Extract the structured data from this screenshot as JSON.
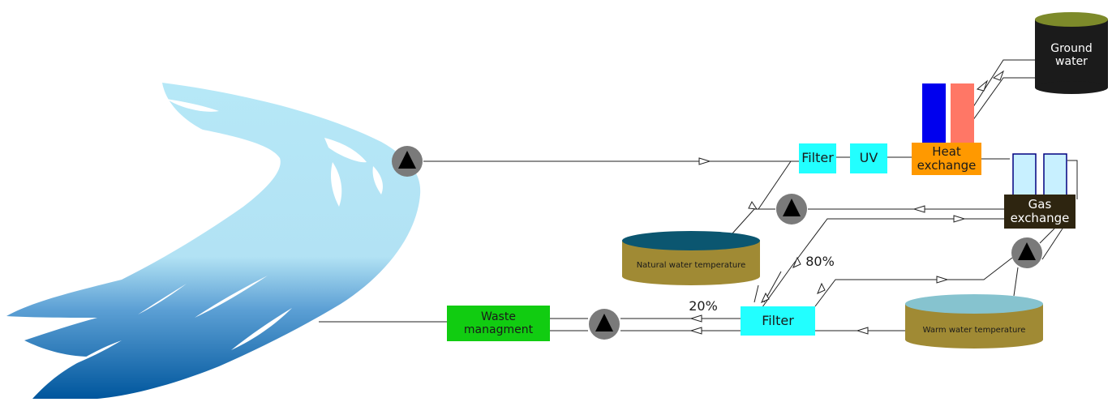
{
  "nodes": {
    "ground_water": "Ground water",
    "filter_top": "Filter",
    "uv": "UV",
    "heat_exchange": "Heat exchange",
    "gas_exchange": "Gas exchange",
    "natural_tank": "Natural water temperature",
    "warm_tank": "Warm water temperature",
    "filter_bottom": "Filter",
    "waste": "Waste managment"
  },
  "flow_labels": {
    "pct_80": "80%",
    "pct_20": "20%"
  },
  "icons": {
    "pump": "pump-icon",
    "river": "river-illustration"
  },
  "colors": {
    "filter": "#22ffff",
    "uv": "#22ffff",
    "heat_exchange": "#ff9900",
    "gas_exchange": "#2e2510",
    "waste": "#11cc11",
    "tank_body": "#a08a34",
    "natural_tank_top": "#0b5670",
    "warm_tank_top": "#86c3cf",
    "ground_water": "#1b1b1b",
    "heat_blue": "#0000ee",
    "heat_red": "#ff7766",
    "gas_column": "#c8f0ff"
  }
}
